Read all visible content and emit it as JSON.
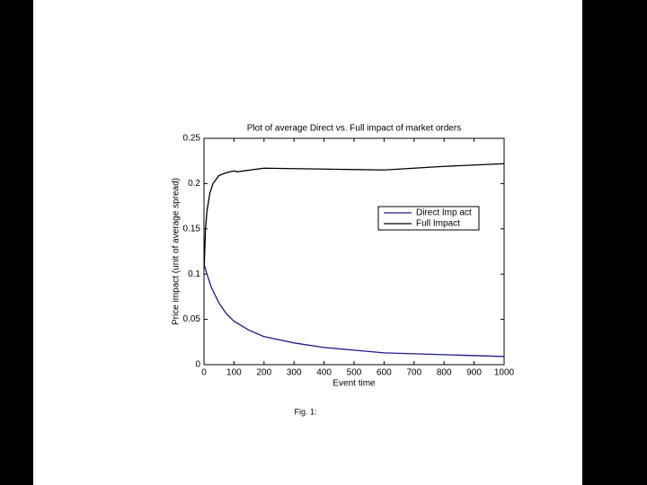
{
  "chart_data": {
    "type": "line",
    "title": "Plot of average Direct vs. Full impact of market orders",
    "x_label": "Event time",
    "y_label": "Price impact (unit of average spread)",
    "caption": "Fig. 1:",
    "xlim": [
      0,
      1000
    ],
    "xticks": [
      0,
      100,
      200,
      300,
      400,
      500,
      600,
      700,
      800,
      900,
      1000
    ],
    "ylim": [
      0,
      0.25
    ],
    "yticks": [
      0,
      0.05,
      0.1,
      0.15,
      0.2,
      0.25
    ],
    "legend": "upper right",
    "series": [
      {
        "name": "Direct Imp act",
        "color": "#1a1a8c",
        "x": [
          1,
          10,
          25,
          50,
          75,
          100,
          150,
          200,
          300,
          400,
          500,
          600,
          700,
          800,
          900,
          1000
        ],
        "values": [
          0.11,
          0.1,
          0.085,
          0.068,
          0.056,
          0.048,
          0.038,
          0.031,
          0.024,
          0.019,
          0.016,
          0.013,
          0.012,
          0.011,
          0.01,
          0.009
        ]
      },
      {
        "name": "Full Impact",
        "color": "#000000",
        "x": [
          1,
          5,
          10,
          20,
          30,
          50,
          75,
          100,
          110,
          200,
          400,
          600,
          800,
          1000
        ],
        "values": [
          0.11,
          0.15,
          0.17,
          0.19,
          0.2,
          0.209,
          0.212,
          0.214,
          0.213,
          0.217,
          0.216,
          0.215,
          0.219,
          0.222
        ]
      }
    ]
  }
}
